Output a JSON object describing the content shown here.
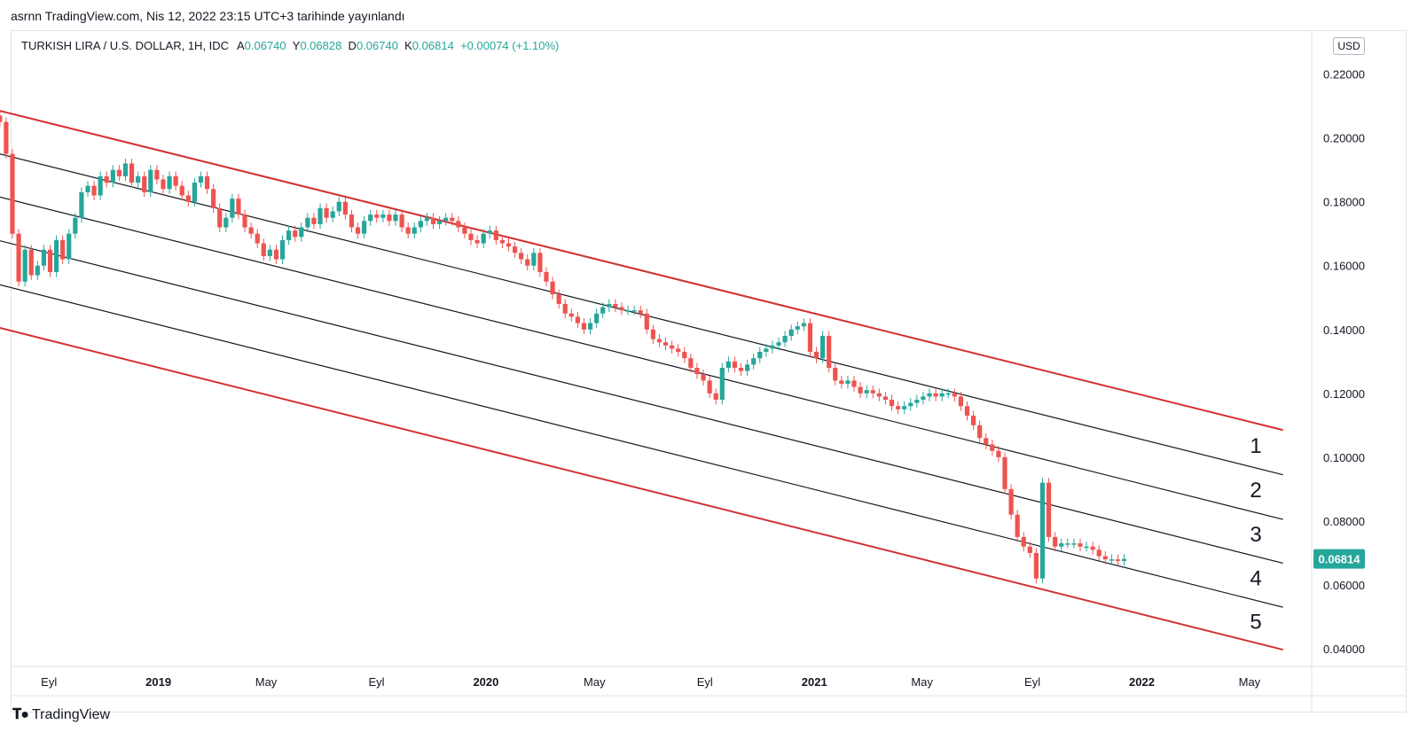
{
  "header": {
    "publish_line": "asrnn TradingView.com, Nis 12, 2022 23:15 UTC+3 tarihinde yayınlandı"
  },
  "legend": {
    "symbol": "TURKISH LIRA / U.S. DOLLAR, 1H, IDC",
    "open_label": "A",
    "open": "0.06740",
    "high_label": "Y",
    "high": "0.06828",
    "low_label": "D",
    "low": "0.06740",
    "close_label": "K",
    "close": "0.06814",
    "change": "+0.00074 (+1.10%)"
  },
  "currency": "USD",
  "price_badge": "0.06814",
  "brand": "TradingView",
  "colors": {
    "up": "#26a69a",
    "down": "#ef5350",
    "channel": "#d32f2f",
    "inner": "#131722"
  },
  "chart_data": {
    "type": "candlestick",
    "title": "TURKISH LIRA / U.S. DOLLAR",
    "y_axis_labels": [
      "0.22000",
      "0.20000",
      "0.18000",
      "0.16000",
      "0.14000",
      "0.12000",
      "0.10000",
      "0.08000",
      "0.06000",
      "0.04000"
    ],
    "x_axis_labels": [
      "Eyl",
      "2019",
      "May",
      "Eyl",
      "2020",
      "May",
      "Eyl",
      "2021",
      "May",
      "Eyl",
      "2022",
      "May"
    ],
    "x_axis_bold": [
      "2019",
      "2020",
      "2021",
      "2022"
    ],
    "ylim": [
      0.035,
      0.226
    ],
    "xlim": [
      "2018-08-15",
      "2022-08-01"
    ],
    "grid": false,
    "last_price": 0.06814,
    "channel_lines": [
      {
        "name": "upper",
        "start": [
          "2018-08-01",
          0.2085
        ],
        "end": [
          "2022-07-01",
          0.1085
        ]
      },
      {
        "name": "1",
        "start": [
          "2018-08-01",
          0.195
        ],
        "end": [
          "2022-07-01",
          0.0945
        ]
      },
      {
        "name": "2",
        "start": [
          "2018-08-01",
          0.1815
        ],
        "end": [
          "2022-07-01",
          0.0805
        ]
      },
      {
        "name": "3",
        "start": [
          "2018-08-01",
          0.1678
        ],
        "end": [
          "2022-07-01",
          0.0668
        ]
      },
      {
        "name": "4",
        "start": [
          "2018-08-01",
          0.154
        ],
        "end": [
          "2022-07-01",
          0.053
        ]
      },
      {
        "name": "lower",
        "start": [
          "2018-08-01",
          0.1405
        ],
        "end": [
          "2022-07-01",
          0.0397
        ]
      }
    ],
    "zone_labels": [
      "1",
      "2",
      "3",
      "4",
      "5"
    ],
    "close_series": {
      "start": "2018-08-01",
      "step_days": 7,
      "values": [
        0.205,
        0.195,
        0.17,
        0.155,
        0.165,
        0.157,
        0.16,
        0.165,
        0.158,
        0.168,
        0.162,
        0.17,
        0.175,
        0.183,
        0.185,
        0.182,
        0.188,
        0.186,
        0.19,
        0.188,
        0.192,
        0.186,
        0.188,
        0.183,
        0.19,
        0.187,
        0.184,
        0.188,
        0.185,
        0.182,
        0.18,
        0.186,
        0.188,
        0.184,
        0.178,
        0.172,
        0.175,
        0.181,
        0.176,
        0.172,
        0.17,
        0.167,
        0.163,
        0.165,
        0.162,
        0.168,
        0.171,
        0.169,
        0.172,
        0.175,
        0.173,
        0.178,
        0.175,
        0.177,
        0.18,
        0.176,
        0.172,
        0.17,
        0.174,
        0.176,
        0.175,
        0.176,
        0.174,
        0.176,
        0.172,
        0.17,
        0.172,
        0.174,
        0.175,
        0.173,
        0.174,
        0.175,
        0.174,
        0.172,
        0.17,
        0.168,
        0.167,
        0.17,
        0.171,
        0.168,
        0.167,
        0.166,
        0.164,
        0.162,
        0.16,
        0.164,
        0.158,
        0.155,
        0.151,
        0.148,
        0.145,
        0.144,
        0.142,
        0.14,
        0.142,
        0.145,
        0.147,
        0.148,
        0.147,
        0.146,
        0.146,
        0.146,
        0.145,
        0.14,
        0.137,
        0.136,
        0.135,
        0.134,
        0.133,
        0.131,
        0.128,
        0.126,
        0.124,
        0.12,
        0.118,
        0.128,
        0.13,
        0.128,
        0.127,
        0.129,
        0.131,
        0.133,
        0.134,
        0.135,
        0.136,
        0.138,
        0.14,
        0.141,
        0.142,
        0.133,
        0.131,
        0.138,
        0.128,
        0.124,
        0.123,
        0.124,
        0.122,
        0.12,
        0.121,
        0.12,
        0.119,
        0.118,
        0.116,
        0.115,
        0.116,
        0.117,
        0.118,
        0.119,
        0.12,
        0.119,
        0.12,
        0.12,
        0.119,
        0.116,
        0.113,
        0.11,
        0.106,
        0.104,
        0.102,
        0.1,
        0.09,
        0.082,
        0.075,
        0.072,
        0.07,
        0.062,
        0.092,
        0.075,
        0.072,
        0.073,
        0.073,
        0.073,
        0.072,
        0.072,
        0.071,
        0.069,
        0.068,
        0.068,
        0.0675,
        0.06814
      ]
    }
  }
}
